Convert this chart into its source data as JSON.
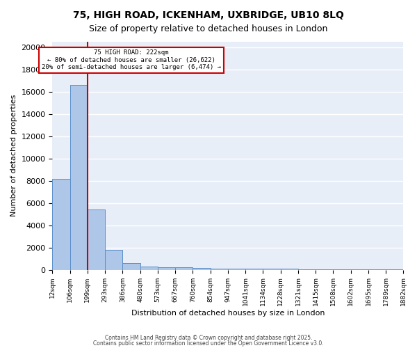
{
  "title_line1": "75, HIGH ROAD, ICKENHAM, UXBRIDGE, UB10 8LQ",
  "title_line2": "Size of property relative to detached houses in London",
  "xlabel": "Distribution of detached houses by size in London",
  "ylabel": "Number of detached properties",
  "bin_labels": [
    "12sqm",
    "106sqm",
    "199sqm",
    "293sqm",
    "386sqm",
    "480sqm",
    "573sqm",
    "667sqm",
    "760sqm",
    "854sqm",
    "947sqm",
    "1041sqm",
    "1134sqm",
    "1228sqm",
    "1321sqm",
    "1415sqm",
    "1508sqm",
    "1602sqm",
    "1695sqm",
    "1789sqm",
    "1882sqm"
  ],
  "bar_values": [
    8200,
    16600,
    5400,
    1800,
    600,
    300,
    250,
    200,
    150,
    100,
    100,
    90,
    80,
    70,
    60,
    55,
    50,
    45,
    40,
    35
  ],
  "bar_color": "#aec6e8",
  "bar_edge_color": "#5b8fc9",
  "annotation_text": "75 HIGH ROAD: 222sqm\n← 80% of detached houses are smaller (26,622)\n20% of semi-detached houses are larger (6,474) →",
  "annotation_box_color": "#ffffff",
  "annotation_box_edge_color": "#cc0000",
  "vline_x_idx": 2,
  "vline_color": "#cc0000",
  "ylim": [
    0,
    20500
  ],
  "yticks": [
    0,
    2000,
    4000,
    6000,
    8000,
    10000,
    12000,
    14000,
    16000,
    18000,
    20000
  ],
  "background_color": "#e8eef8",
  "grid_color": "#ffffff",
  "footer_line1": "Contains HM Land Registry data © Crown copyright and database right 2025.",
  "footer_line2": "Contains public sector information licensed under the Open Government Licence v3.0."
}
